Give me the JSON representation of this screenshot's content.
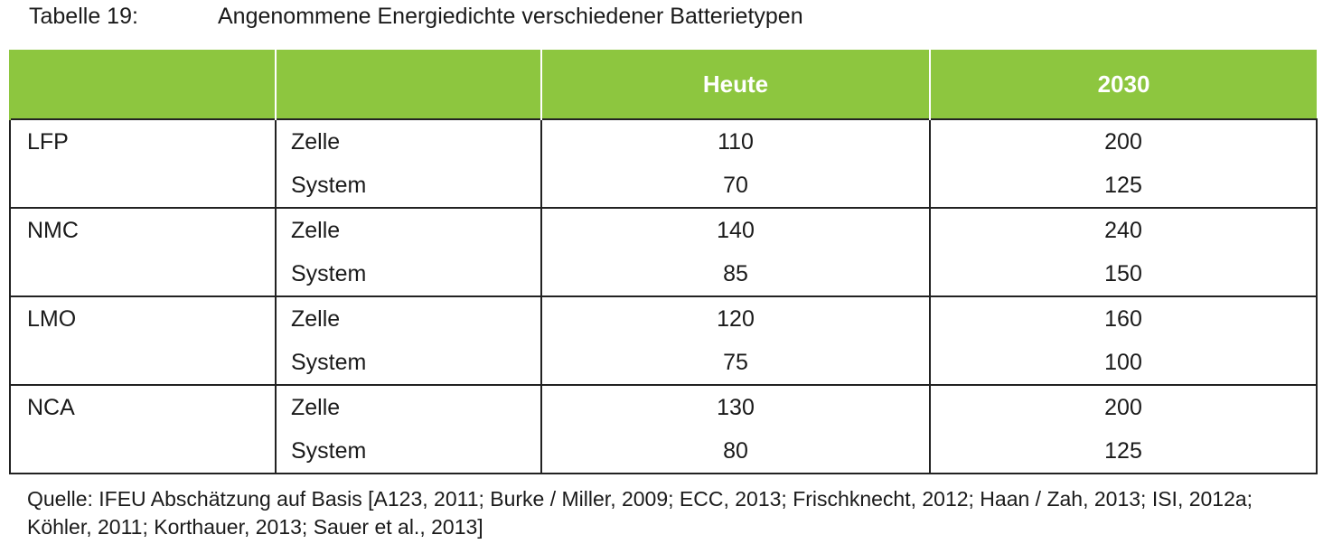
{
  "caption": {
    "number": "Tabelle 19:",
    "title": "Angenommene Energiedichte verschiedener Batterietypen"
  },
  "table": {
    "headers": [
      "",
      "",
      "Heute",
      "2030"
    ],
    "groups": [
      {
        "type": "LFP",
        "rows": [
          {
            "sub": "Zelle",
            "heute": "110",
            "y2030": "200"
          },
          {
            "sub": "System",
            "heute": "70",
            "y2030": "125"
          }
        ]
      },
      {
        "type": "NMC",
        "rows": [
          {
            "sub": "Zelle",
            "heute": "140",
            "y2030": "240"
          },
          {
            "sub": "System",
            "heute": "85",
            "y2030": "150"
          }
        ]
      },
      {
        "type": "LMO",
        "rows": [
          {
            "sub": "Zelle",
            "heute": "120",
            "y2030": "160"
          },
          {
            "sub": "System",
            "heute": "75",
            "y2030": "100"
          }
        ]
      },
      {
        "type": "NCA",
        "rows": [
          {
            "sub": "Zelle",
            "heute": "130",
            "y2030": "200"
          },
          {
            "sub": "System",
            "heute": "80",
            "y2030": "125"
          }
        ]
      }
    ]
  },
  "source": {
    "line1": "Quelle: IFEU Abschätzung auf Basis [A123, 2011; Burke / Miller, 2009; ECC, 2013; Frischknecht, 2012; Haan / Zah, 2013; ISI, 2012a;",
    "line2": "Köhler, 2011; Korthauer, 2013; Sauer et al., 2013]"
  },
  "colors": {
    "header_background": "#8dc63f",
    "header_text": "#ffffff",
    "border": "#222222"
  }
}
